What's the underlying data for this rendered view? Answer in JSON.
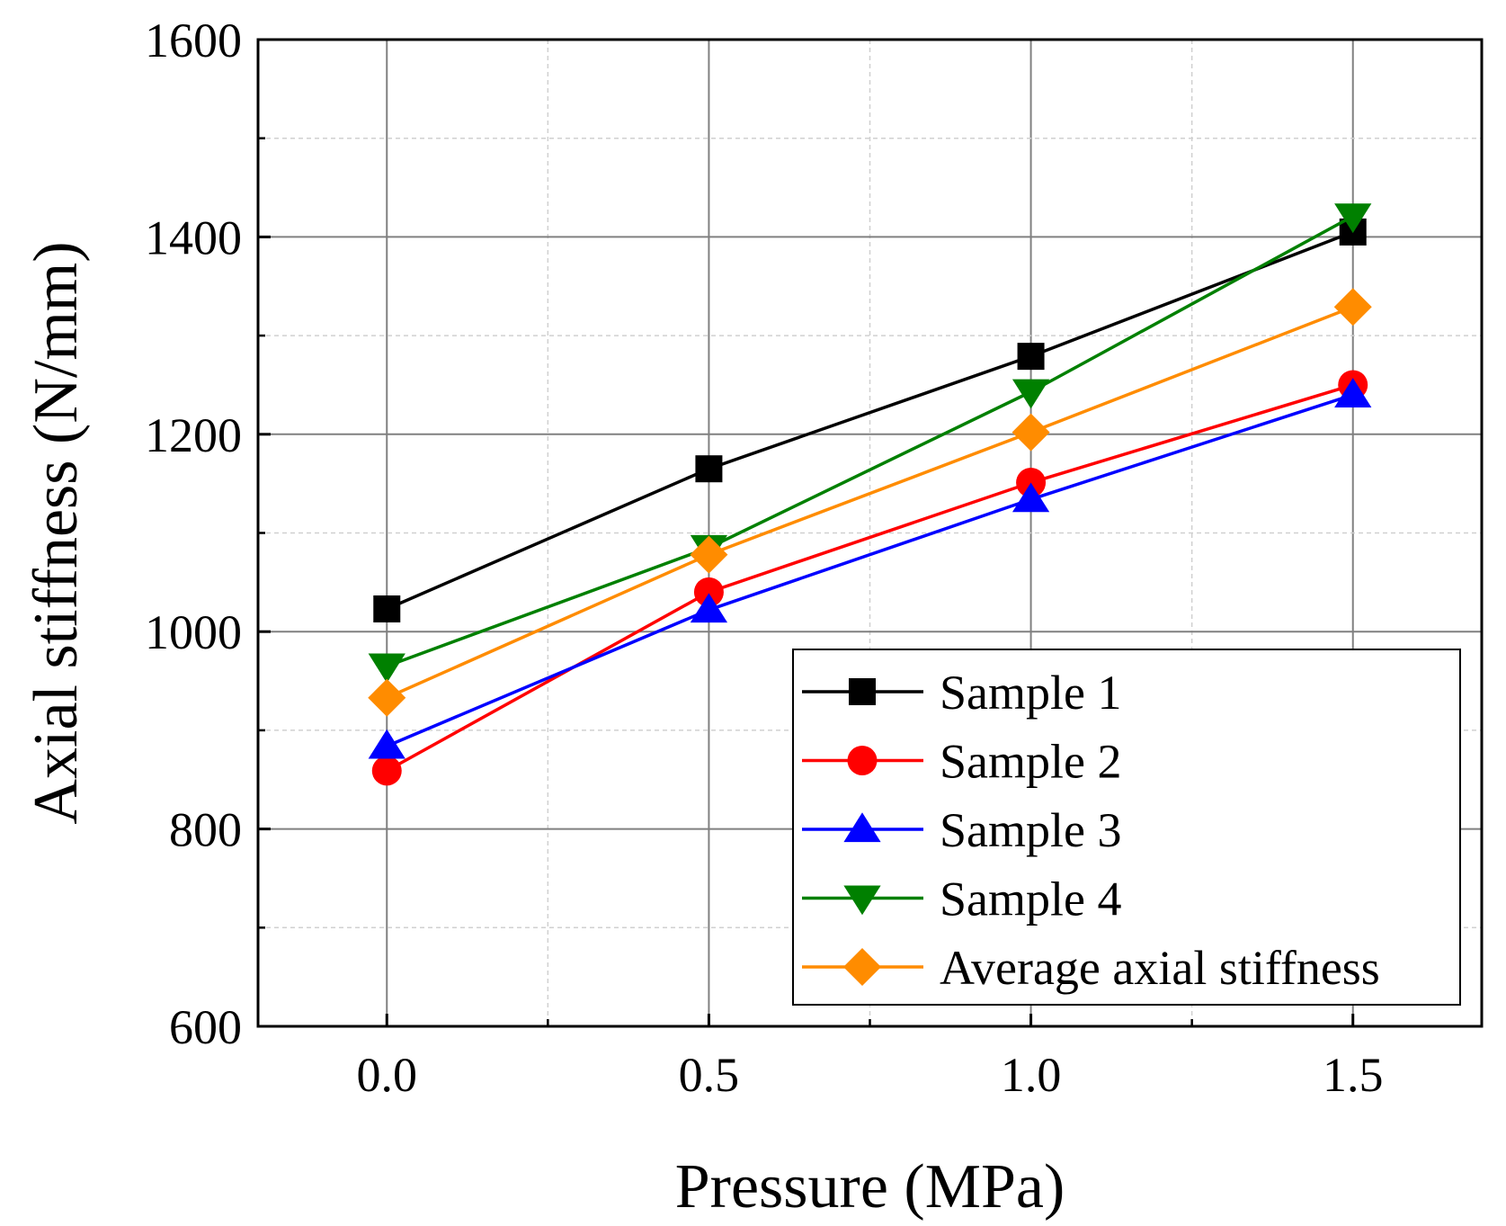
{
  "chart_data": {
    "type": "line",
    "title": "",
    "xlabel": "Pressure (MPa)",
    "ylabel": "Axial stiffness (N/mm)",
    "x": [
      0.0,
      0.5,
      1.0,
      1.5
    ],
    "x_tick_values": [
      0.0,
      0.5,
      1.0,
      1.5
    ],
    "x_tick_labels": [
      "0.0",
      "0.5",
      "1.0",
      "1.5"
    ],
    "y_tick_values": [
      600,
      800,
      1000,
      1200,
      1400,
      1600
    ],
    "y_tick_labels": [
      "600",
      "800",
      "1000",
      "1200",
      "1400",
      "1600"
    ],
    "xlim": [
      -0.2,
      1.7
    ],
    "ylim": [
      600,
      1600
    ],
    "grid": true,
    "legend_position": "bottom-right",
    "series": [
      {
        "name": "Sample 1",
        "values": [
          1023,
          1165,
          1279,
          1405
        ],
        "color": "#000000",
        "marker": "square"
      },
      {
        "name": "Sample 2",
        "values": [
          859,
          1040,
          1151,
          1250
        ],
        "color": "#ff0000",
        "marker": "circle"
      },
      {
        "name": "Sample 3",
        "values": [
          884,
          1022,
          1134,
          1240
        ],
        "color": "#0000ff",
        "marker": "triangle-up"
      },
      {
        "name": "Sample 4",
        "values": [
          965,
          1085,
          1243,
          1421
        ],
        "color": "#008000",
        "marker": "triangle-down"
      },
      {
        "name": "Average axial stiffness",
        "values": [
          933,
          1078,
          1202,
          1329
        ],
        "color": "#ff8c00",
        "marker": "diamond"
      }
    ]
  }
}
